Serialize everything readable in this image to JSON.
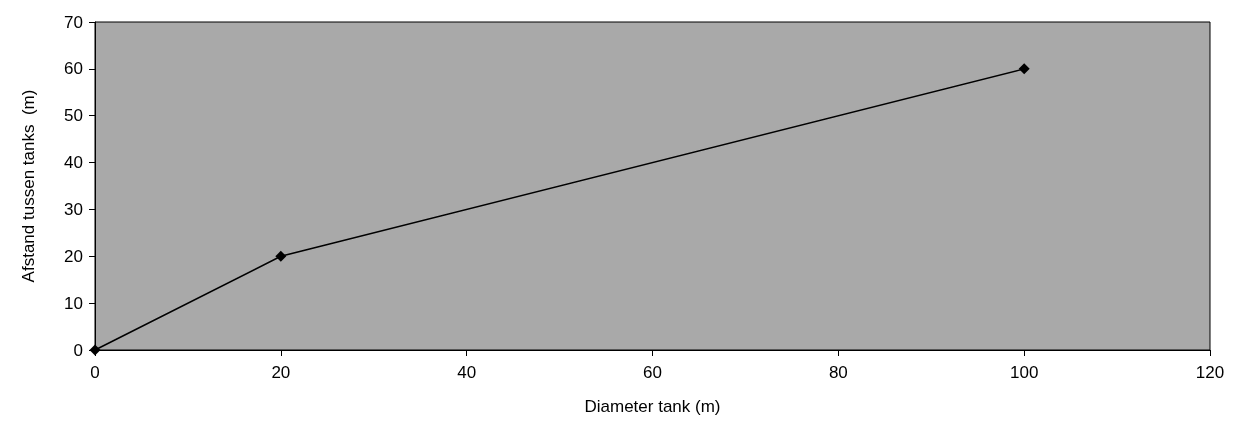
{
  "chart_data": {
    "type": "line",
    "xlabel": "Diameter tank (m)",
    "ylabel": "Afstand tussen tanks  (m)",
    "x": [
      0,
      20,
      100
    ],
    "series": [
      {
        "color": "#000000",
        "values": [
          0,
          20,
          60
        ]
      }
    ],
    "xlim": [
      0,
      120
    ],
    "xticks": [
      0,
      20,
      40,
      60,
      80,
      100,
      120
    ],
    "ylim": [
      0,
      70
    ],
    "yticks": [
      0,
      10,
      20,
      30,
      40,
      50,
      60,
      70
    ],
    "marker": "diamond",
    "line_style": "solid",
    "grid": false
  }
}
